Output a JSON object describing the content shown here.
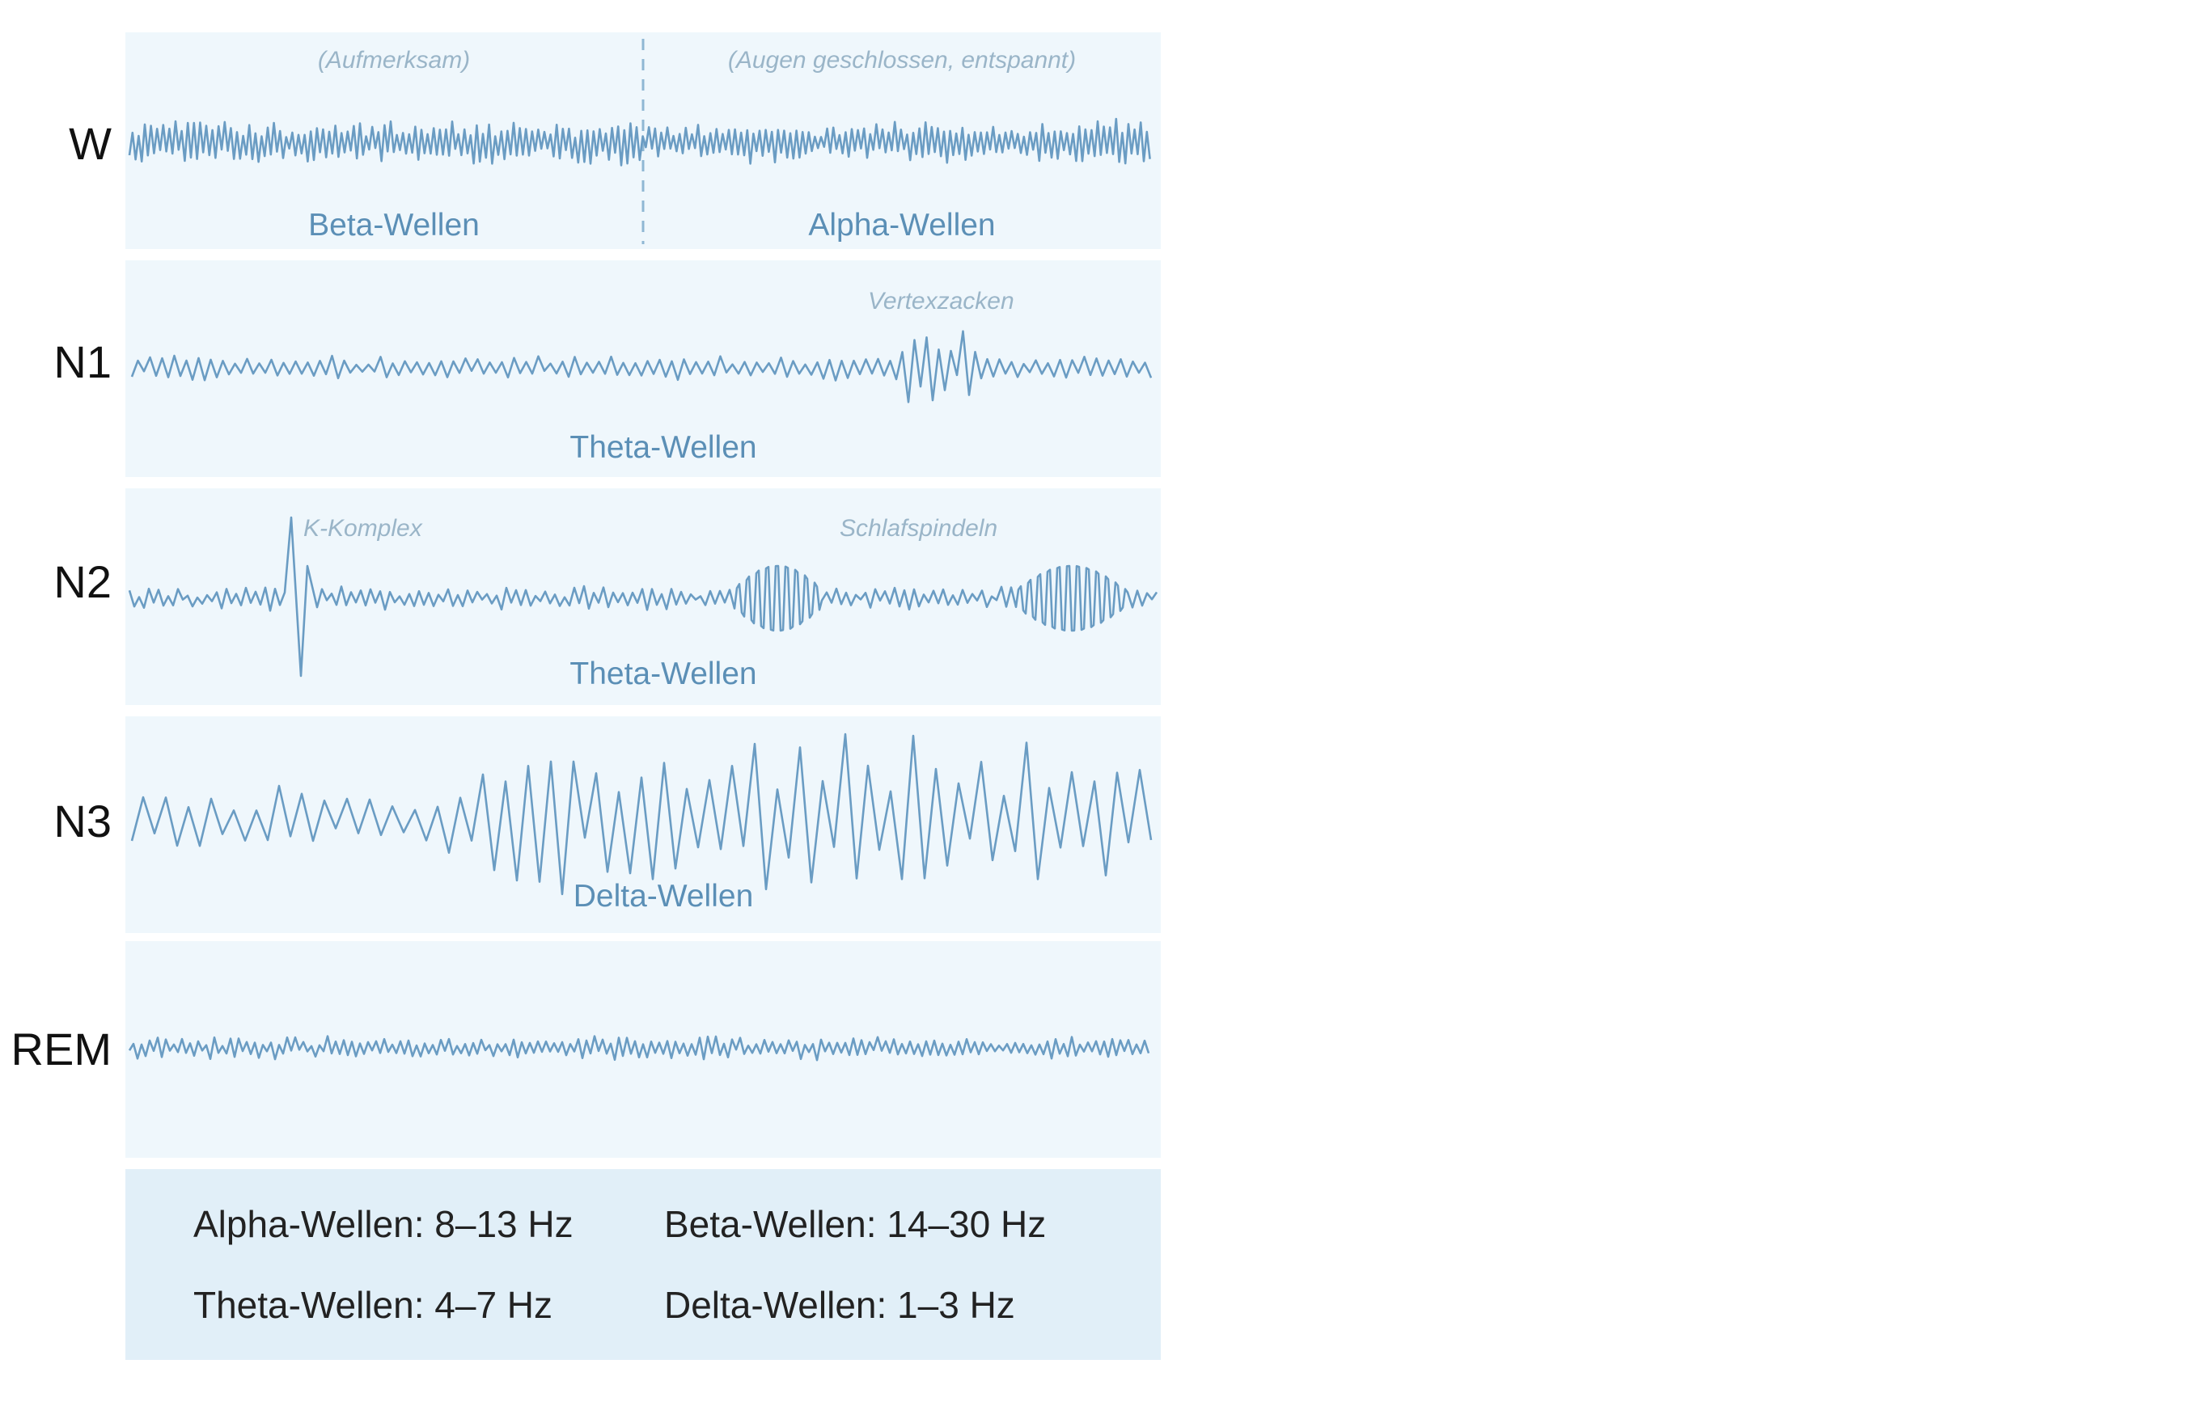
{
  "stages": [
    {
      "label": "W",
      "wave_labels": [
        "Beta-Wellen",
        "Alpha-Wellen"
      ],
      "notes": [
        "(Aufmerksam)",
        "(Augen geschlossen, entspannt)"
      ],
      "divider": true
    },
    {
      "label": "N1",
      "wave_labels": [
        "Theta-Wellen"
      ],
      "notes": [
        "Vertexzacken"
      ]
    },
    {
      "label": "N2",
      "wave_labels": [
        "Theta-Wellen"
      ],
      "notes": [
        "K-Komplex",
        "Schlafspindeln"
      ]
    },
    {
      "label": "N3",
      "wave_labels": [
        "Delta-Wellen"
      ],
      "notes": []
    },
    {
      "label": "REM",
      "wave_labels": [],
      "notes": []
    }
  ],
  "legend": {
    "alpha": "Alpha-Wellen: 8–13 Hz",
    "beta": "Beta-Wellen: 14–30 Hz",
    "theta": "Theta-Wellen: 4–7 Hz",
    "delta": "Delta-Wellen: 1–3 Hz"
  },
  "colors": {
    "panel_background": "#eff7fc",
    "legend_background": "#e1eff8",
    "wave_stroke": "#6a9cc3",
    "wave_label": "#5b8fb6",
    "note_text": "#9ab5c8"
  }
}
